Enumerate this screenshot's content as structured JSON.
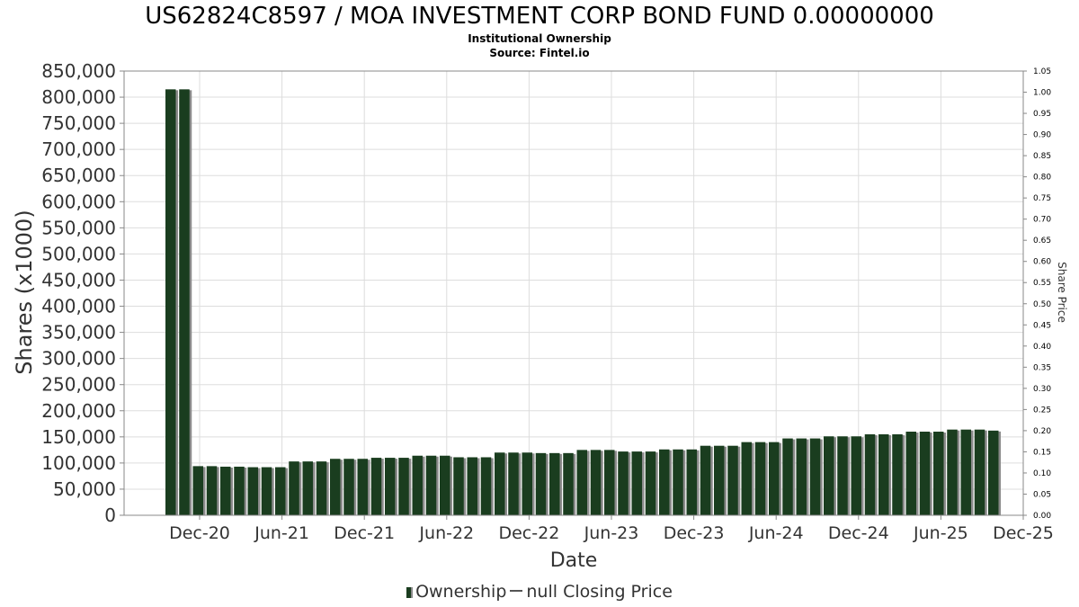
{
  "header": {
    "title": "US62824C8597 / MOA INVESTMENT CORP BOND FUND 0.00000000",
    "subtitle": "Institutional Ownership",
    "source": "Source: Fintel.io"
  },
  "legend": {
    "ownership_label": "Ownership",
    "price_label": "null Closing Price"
  },
  "colors": {
    "bar": "#1a3d1f",
    "bar_shadow": "#8a8a8a",
    "grid": "#dddddd",
    "axis": "#888888"
  },
  "chart_data": {
    "type": "bar",
    "title": "US62824C8597 / MOA INVESTMENT CORP BOND FUND 0.00000000",
    "subtitle": "Institutional Ownership",
    "xlabel": "Date",
    "ylabel": "Shares (x1000)",
    "y2label": "Share Price",
    "ylim": [
      0,
      850000
    ],
    "y2lim": [
      0,
      1.05
    ],
    "y_ticks": [
      "0",
      "50,000",
      "100,000",
      "150,000",
      "200,000",
      "250,000",
      "300,000",
      "350,000",
      "400,000",
      "450,000",
      "500,000",
      "550,000",
      "600,000",
      "650,000",
      "700,000",
      "750,000",
      "800,000",
      "850,000"
    ],
    "y2_ticks": [
      "0.00",
      "0.05",
      "0.10",
      "0.15",
      "0.20",
      "0.25",
      "0.30",
      "0.35",
      "0.40",
      "0.45",
      "0.50",
      "0.55",
      "0.60",
      "0.65",
      "0.70",
      "0.75",
      "0.80",
      "0.85",
      "0.90",
      "0.95",
      "1.00",
      "1.05"
    ],
    "x_ticks": [
      "Dec-20",
      "Jun-21",
      "Dec-21",
      "Jun-22",
      "Dec-22",
      "Jun-23",
      "Dec-23",
      "Jun-24",
      "Dec-24",
      "Jun-25",
      "Dec-25"
    ],
    "grid": true,
    "legend_position": "bottom",
    "series": [
      {
        "name": "Ownership",
        "values": [
          815000,
          815000,
          94000,
          94000,
          93000,
          93000,
          92000,
          92000,
          92000,
          103000,
          103000,
          103000,
          108000,
          108000,
          108000,
          110000,
          110000,
          110000,
          114000,
          114000,
          114000,
          111000,
          111000,
          111000,
          120000,
          120000,
          120000,
          119000,
          119000,
          119000,
          125000,
          125000,
          125000,
          122000,
          122000,
          122000,
          126000,
          126000,
          126000,
          133000,
          133000,
          133000,
          140000,
          140000,
          140000,
          147000,
          147000,
          147000,
          151000,
          151000,
          151000,
          155000,
          155000,
          155000,
          160000,
          160000,
          160000,
          164000,
          164000,
          164000,
          162000
        ]
      }
    ]
  }
}
